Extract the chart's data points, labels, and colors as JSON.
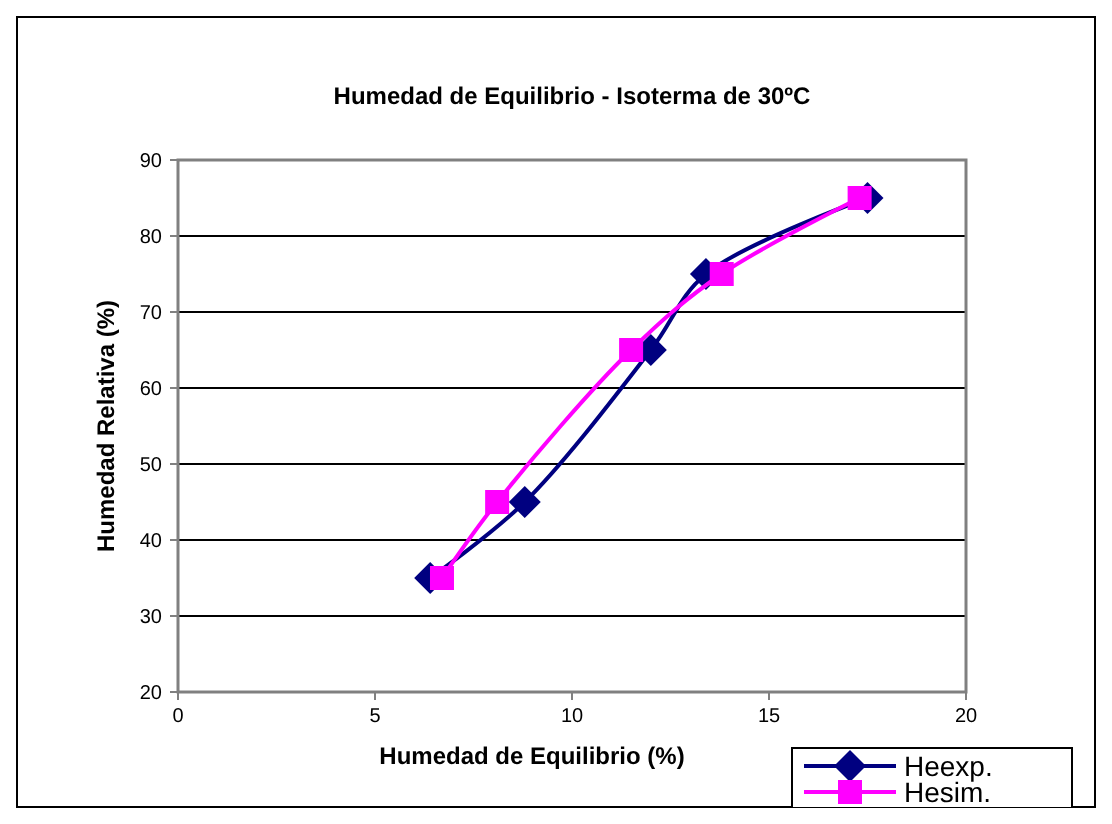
{
  "chart_data": {
    "type": "line",
    "title": "Humedad de Equilibrio - Isoterma de 30ºC",
    "xlabel": "Humedad de Equilibrio (%)",
    "ylabel": "Humedad Relativa (%)",
    "xlim": [
      0,
      20
    ],
    "xticks": [
      0,
      5,
      10,
      15,
      20
    ],
    "ylim": [
      20,
      90
    ],
    "yticks": [
      20,
      30,
      40,
      50,
      60,
      70,
      80,
      90
    ],
    "grid": "y",
    "legend": "bottom right",
    "series": [
      {
        "name": "Heexp.",
        "color": "#000080",
        "marker": "diamond",
        "x": [
          6.4,
          8.8,
          12,
          13.4,
          17.5
        ],
        "values": [
          35,
          45,
          65,
          75,
          85
        ]
      },
      {
        "name": "Hesim.",
        "color": "#ff00ff",
        "marker": "square",
        "x": [
          6.7,
          8.1,
          11.5,
          13.8,
          17.3
        ],
        "values": [
          35,
          45,
          65,
          75,
          85
        ]
      }
    ]
  }
}
